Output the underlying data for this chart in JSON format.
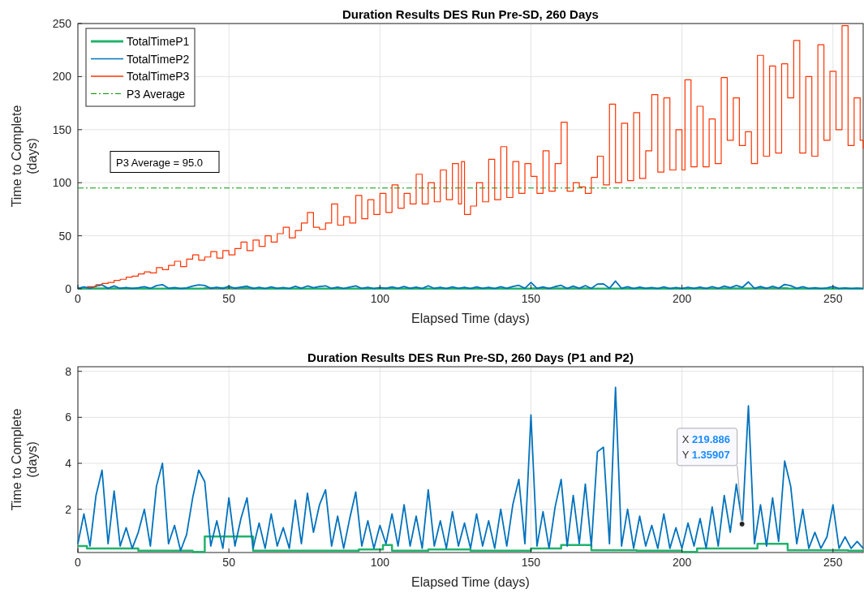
{
  "chart_data": [
    {
      "type": "line",
      "title": "Duration Results DES Run Pre-SD, 260 Days",
      "xlabel": "Elapsed Time (days)",
      "ylabel": "Time to Complete\n(days)",
      "xlim": [
        0,
        260
      ],
      "xticks": [
        0,
        50,
        100,
        150,
        200,
        250
      ],
      "ylim": [
        0,
        250
      ],
      "yticks": [
        0,
        50,
        100,
        150,
        200,
        250
      ],
      "grid": true,
      "legend": "top left",
      "annotations": [
        "P3 Average = 95.0"
      ],
      "ref_lines": [
        {
          "axis": "y",
          "value": 95,
          "label": "P3 Average",
          "color": "#009900",
          "line_style": "dashed"
        }
      ],
      "series": [
        {
          "name": "TotalTimeP1",
          "type": "step",
          "color": "#22b36b",
          "x": [
            0,
            3,
            20,
            38,
            42,
            58,
            93,
            101,
            104,
            116,
            130,
            150,
            160,
            170,
            185,
            200,
            205,
            225,
            235,
            255,
            260
          ],
          "values": [
            0.4,
            0.3,
            0.2,
            0.15,
            0.82,
            0.2,
            0.25,
            0.45,
            0.2,
            0.25,
            0.2,
            0.3,
            0.45,
            0.22,
            0.2,
            0.15,
            0.3,
            0.5,
            0.22,
            0.2,
            0.2
          ]
        },
        {
          "name": "TotalTimeP2",
          "type": "line",
          "color": "#0072bd",
          "x": [
            0,
            2,
            4,
            6,
            8,
            10,
            12,
            14,
            16,
            18,
            20,
            22,
            24,
            26,
            28,
            30,
            32,
            34,
            36,
            38,
            40,
            42,
            44,
            46,
            48,
            50,
            52,
            54,
            56,
            58,
            60,
            62,
            64,
            66,
            68,
            70,
            72,
            74,
            76,
            78,
            80,
            82,
            84,
            86,
            88,
            90,
            92,
            94,
            96,
            98,
            100,
            102,
            104,
            106,
            108,
            110,
            112,
            114,
            116,
            118,
            120,
            122,
            124,
            126,
            128,
            130,
            132,
            134,
            136,
            138,
            140,
            142,
            144,
            146,
            148,
            150,
            152,
            154,
            156,
            158,
            160,
            162,
            164,
            166,
            168,
            170,
            172,
            174,
            176,
            178,
            180,
            182,
            184,
            186,
            188,
            190,
            192,
            194,
            196,
            198,
            200,
            202,
            204,
            206,
            208,
            210,
            212,
            214,
            216,
            218,
            220,
            222,
            224,
            226,
            228,
            230,
            232,
            234,
            236,
            238,
            240,
            242,
            244,
            246,
            248,
            250,
            252,
            254,
            256,
            258,
            260
          ],
          "values": [
            0.5,
            1.8,
            0.4,
            2.6,
            3.7,
            0.5,
            2.8,
            0.4,
            1.2,
            0.3,
            1.0,
            2.0,
            0.4,
            3.0,
            4.0,
            0.5,
            1.3,
            0.2,
            0.9,
            2.5,
            3.7,
            3.2,
            0.4,
            1.5,
            0.3,
            2.5,
            0.4,
            1.6,
            2.5,
            0.3,
            1.4,
            0.3,
            1.8,
            0.4,
            1.2,
            0.3,
            2.4,
            0.5,
            2.7,
            1.0,
            2.2,
            2.85,
            0.4,
            1.7,
            0.3,
            1.6,
            2.75,
            0.4,
            1.5,
            0.3,
            1.3,
            0.5,
            1.8,
            0.4,
            2.2,
            0.4,
            1.7,
            0.3,
            2.85,
            0.4,
            1.5,
            0.3,
            1.9,
            0.4,
            1.4,
            0.3,
            1.8,
            0.4,
            1.5,
            0.3,
            2.0,
            0.4,
            2.2,
            3.3,
            0.5,
            6.1,
            0.4,
            1.9,
            0.3,
            2.1,
            3.3,
            0.4,
            2.6,
            0.5,
            3.1,
            0.4,
            4.5,
            4.7,
            0.5,
            7.3,
            0.4,
            2.0,
            0.3,
            1.7,
            0.4,
            1.3,
            0.3,
            1.8,
            0.3,
            1.2,
            0.3,
            1.4,
            0.4,
            1.6,
            0.3,
            2.1,
            0.4,
            2.6,
            1.0,
            3.1,
            1.36,
            6.5,
            0.5,
            2.2,
            0.4,
            2.5,
            0.6,
            4.1,
            3.0,
            0.5,
            2.0,
            0.3,
            1.0,
            0.3,
            0.8,
            2.2,
            0.3,
            0.8,
            0.3,
            0.6,
            0.3
          ]
        },
        {
          "name": "TotalTimeP3",
          "type": "step",
          "color": "#ff3300",
          "x": [
            3,
            4,
            6,
            8,
            10,
            12,
            14,
            16,
            18,
            20,
            22,
            24,
            26,
            28,
            30,
            32,
            34,
            36,
            38,
            40,
            42,
            44,
            46,
            48,
            50,
            52,
            54,
            56,
            58,
            60,
            62,
            64,
            66,
            68,
            70,
            72,
            74,
            76,
            78,
            80,
            82,
            84,
            86,
            88,
            90,
            92,
            94,
            96,
            98,
            100,
            102,
            104,
            106,
            108,
            110,
            112,
            114,
            116,
            118,
            120,
            122,
            124,
            126,
            127,
            128,
            130,
            132,
            134,
            136,
            138,
            140,
            142,
            144,
            146,
            148,
            150,
            152,
            154,
            156,
            158,
            160,
            162,
            164,
            166,
            168,
            170,
            172,
            174,
            176,
            178,
            180,
            182,
            184,
            186,
            188,
            190,
            192,
            194,
            196,
            198,
            200,
            201,
            203,
            205,
            207,
            209,
            211,
            213,
            215,
            217,
            219,
            221,
            223,
            225,
            227,
            229,
            231,
            233,
            235,
            237,
            239,
            241,
            243,
            245,
            247,
            249,
            251,
            253,
            255,
            257,
            259,
            260
          ],
          "values": [
            2,
            2,
            4,
            5,
            6,
            8,
            9,
            11,
            12,
            14,
            16,
            15,
            20,
            18,
            22,
            26,
            21,
            28,
            32,
            27,
            30,
            35,
            29,
            36,
            32,
            38,
            44,
            36,
            46,
            40,
            50,
            44,
            52,
            58,
            48,
            55,
            62,
            72,
            58,
            56,
            62,
            80,
            60,
            68,
            62,
            88,
            66,
            84,
            70,
            90,
            72,
            98,
            76,
            90,
            80,
            108,
            80,
            100,
            82,
            112,
            84,
            118,
            80,
            120,
            70,
            78,
            100,
            82,
            122,
            84,
            134,
            86,
            120,
            90,
            118,
            106,
            90,
            130,
            92,
            118,
            157,
            92,
            100,
            96,
            90,
            105,
            125,
            98,
            174,
            100,
            156,
            102,
            166,
            104,
            130,
            183,
            110,
            180,
            112,
            150,
            112,
            197,
            115,
            172,
            115,
            160,
            118,
            199,
            140,
            180,
            135,
            148,
            118,
            220,
            125,
            210,
            128,
            212,
            180,
            234,
            128,
            200,
            125,
            230,
            140,
            205,
            150,
            248,
            135,
            180,
            140,
            132
          ]
        }
      ]
    },
    {
      "type": "line",
      "title": "Duration Results DES Run Pre-SD, 260 Days (P1 and P2)",
      "xlabel": "Elapsed Time (days)",
      "ylabel": "Time to Complete\n(days)",
      "xlim": [
        0,
        260
      ],
      "xticks": [
        0,
        50,
        100,
        150,
        200,
        250
      ],
      "ylim": [
        0.12,
        8.2
      ],
      "yticks": [
        2,
        4,
        6,
        8
      ],
      "grid": true,
      "annotations": [
        {
          "text": "X 219.886\nY 1.35907",
          "x": 219.886,
          "y": 1.35907
        }
      ],
      "series": [
        {
          "type": "step",
          "color": "#22b36b",
          "x": [
            0,
            3,
            20,
            38,
            42,
            58,
            93,
            101,
            104,
            116,
            130,
            150,
            160,
            170,
            185,
            200,
            205,
            225,
            235,
            255,
            260
          ],
          "values": [
            0.4,
            0.3,
            0.2,
            0.15,
            0.82,
            0.2,
            0.25,
            0.45,
            0.2,
            0.25,
            0.2,
            0.3,
            0.45,
            0.22,
            0.2,
            0.15,
            0.3,
            0.5,
            0.22,
            0.2,
            0.2
          ]
        },
        {
          "type": "line",
          "color": "#0072bd",
          "x": [
            0,
            2,
            4,
            6,
            8,
            10,
            12,
            14,
            16,
            18,
            20,
            22,
            24,
            26,
            28,
            30,
            32,
            34,
            36,
            38,
            40,
            42,
            44,
            46,
            48,
            50,
            52,
            54,
            56,
            58,
            60,
            62,
            64,
            66,
            68,
            70,
            72,
            74,
            76,
            78,
            80,
            82,
            84,
            86,
            88,
            90,
            92,
            94,
            96,
            98,
            100,
            102,
            104,
            106,
            108,
            110,
            112,
            114,
            116,
            118,
            120,
            122,
            124,
            126,
            128,
            130,
            132,
            134,
            136,
            138,
            140,
            142,
            144,
            146,
            148,
            150,
            152,
            154,
            156,
            158,
            160,
            162,
            164,
            166,
            168,
            170,
            172,
            174,
            176,
            178,
            180,
            182,
            184,
            186,
            188,
            190,
            192,
            194,
            196,
            198,
            200,
            202,
            204,
            206,
            208,
            210,
            212,
            214,
            216,
            218,
            220,
            222,
            224,
            226,
            228,
            230,
            232,
            234,
            236,
            238,
            240,
            242,
            244,
            246,
            248,
            250,
            252,
            254,
            256,
            258,
            260
          ],
          "values": [
            0.5,
            1.8,
            0.4,
            2.6,
            3.7,
            0.5,
            2.8,
            0.4,
            1.2,
            0.3,
            1.0,
            2.0,
            0.4,
            3.0,
            4.0,
            0.5,
            1.3,
            0.2,
            0.9,
            2.5,
            3.7,
            3.2,
            0.4,
            1.5,
            0.3,
            2.5,
            0.4,
            1.6,
            2.5,
            0.3,
            1.4,
            0.3,
            1.8,
            0.4,
            1.2,
            0.3,
            2.4,
            0.5,
            2.7,
            1.0,
            2.2,
            2.85,
            0.4,
            1.7,
            0.3,
            1.6,
            2.75,
            0.4,
            1.5,
            0.3,
            1.3,
            0.5,
            1.8,
            0.4,
            2.2,
            0.4,
            1.7,
            0.3,
            2.85,
            0.4,
            1.5,
            0.3,
            1.9,
            0.4,
            1.4,
            0.3,
            1.8,
            0.4,
            1.5,
            0.3,
            2.0,
            0.4,
            2.2,
            3.3,
            0.5,
            6.1,
            0.4,
            1.9,
            0.3,
            2.1,
            3.3,
            0.4,
            2.6,
            0.5,
            3.1,
            0.4,
            4.5,
            4.7,
            0.5,
            7.3,
            0.4,
            2.0,
            0.3,
            1.7,
            0.4,
            1.3,
            0.3,
            1.8,
            0.3,
            1.2,
            0.3,
            1.4,
            0.4,
            1.6,
            0.3,
            2.1,
            0.4,
            2.6,
            1.0,
            3.1,
            1.36,
            6.5,
            0.5,
            2.2,
            0.4,
            2.5,
            0.6,
            4.1,
            3.0,
            0.5,
            2.0,
            0.3,
            1.0,
            0.3,
            0.8,
            2.2,
            0.3,
            0.8,
            0.3,
            0.6,
            0.3
          ]
        }
      ]
    }
  ]
}
